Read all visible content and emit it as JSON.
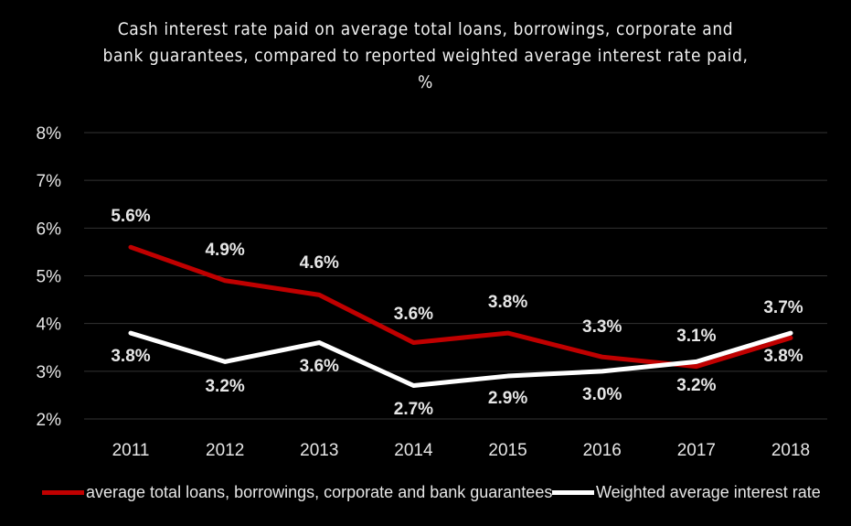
{
  "chart_data": {
    "type": "line",
    "title_lines": [
      "Cash interest rate paid on average total loans, borrowings, corporate and",
      "bank guarantees, compared to reported weighted average interest rate paid,",
      "%"
    ],
    "categories": [
      "2011",
      "2012",
      "2013",
      "2014",
      "2015",
      "2016",
      "2017",
      "2018"
    ],
    "y_ticks": [
      "2%",
      "3%",
      "4%",
      "5%",
      "6%",
      "7%",
      "8%"
    ],
    "ylim": [
      2,
      8
    ],
    "grid": true,
    "legend_position": "bottom",
    "series": [
      {
        "name": "average total loans, borrowings, corporate and bank guarantees",
        "color": "#c00000",
        "values": [
          5.6,
          4.9,
          4.6,
          3.6,
          3.8,
          3.3,
          3.1,
          3.7
        ],
        "labels": [
          "5.6%",
          "4.9%",
          "4.6%",
          "3.6%",
          "3.8%",
          "3.3%",
          "3.1%",
          "3.7%"
        ]
      },
      {
        "name": "Weighted average interest rate",
        "color": "#ffffff",
        "values": [
          3.8,
          3.2,
          3.6,
          2.7,
          2.9,
          3.0,
          3.2,
          3.8
        ],
        "labels": [
          "3.8%",
          "3.2%",
          "3.6%",
          "2.7%",
          "2.9%",
          "3.0%",
          "3.2%",
          "3.8%"
        ]
      }
    ]
  }
}
